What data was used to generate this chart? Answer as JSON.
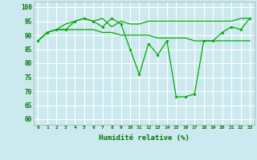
{
  "x": [
    0,
    1,
    2,
    3,
    4,
    5,
    6,
    7,
    8,
    9,
    10,
    11,
    12,
    13,
    14,
    15,
    16,
    17,
    18,
    19,
    20,
    21,
    22,
    23
  ],
  "line1": [
    88,
    91,
    92,
    92,
    95,
    96,
    95,
    93,
    96,
    94,
    85,
    76,
    87,
    83,
    88,
    68,
    68,
    69,
    88,
    88,
    91,
    93,
    92,
    96
  ],
  "line2": [
    88,
    91,
    92,
    94,
    95,
    96,
    95,
    96,
    93,
    95,
    94,
    94,
    95,
    95,
    95,
    95,
    95,
    95,
    95,
    95,
    95,
    95,
    96,
    96
  ],
  "line3": [
    88,
    91,
    92,
    92,
    92,
    92,
    92,
    91,
    91,
    90,
    90,
    90,
    90,
    89,
    89,
    89,
    89,
    88,
    88,
    88,
    88,
    88,
    88,
    88
  ],
  "background_color": "#cce9f0",
  "grid_color": "#ffffff",
  "line_color": "#00aa00",
  "ylabel_vals": [
    60,
    65,
    70,
    75,
    80,
    85,
    90,
    95,
    100
  ],
  "ylim": [
    58,
    102
  ],
  "xlabel": "Humidité relative (%)"
}
